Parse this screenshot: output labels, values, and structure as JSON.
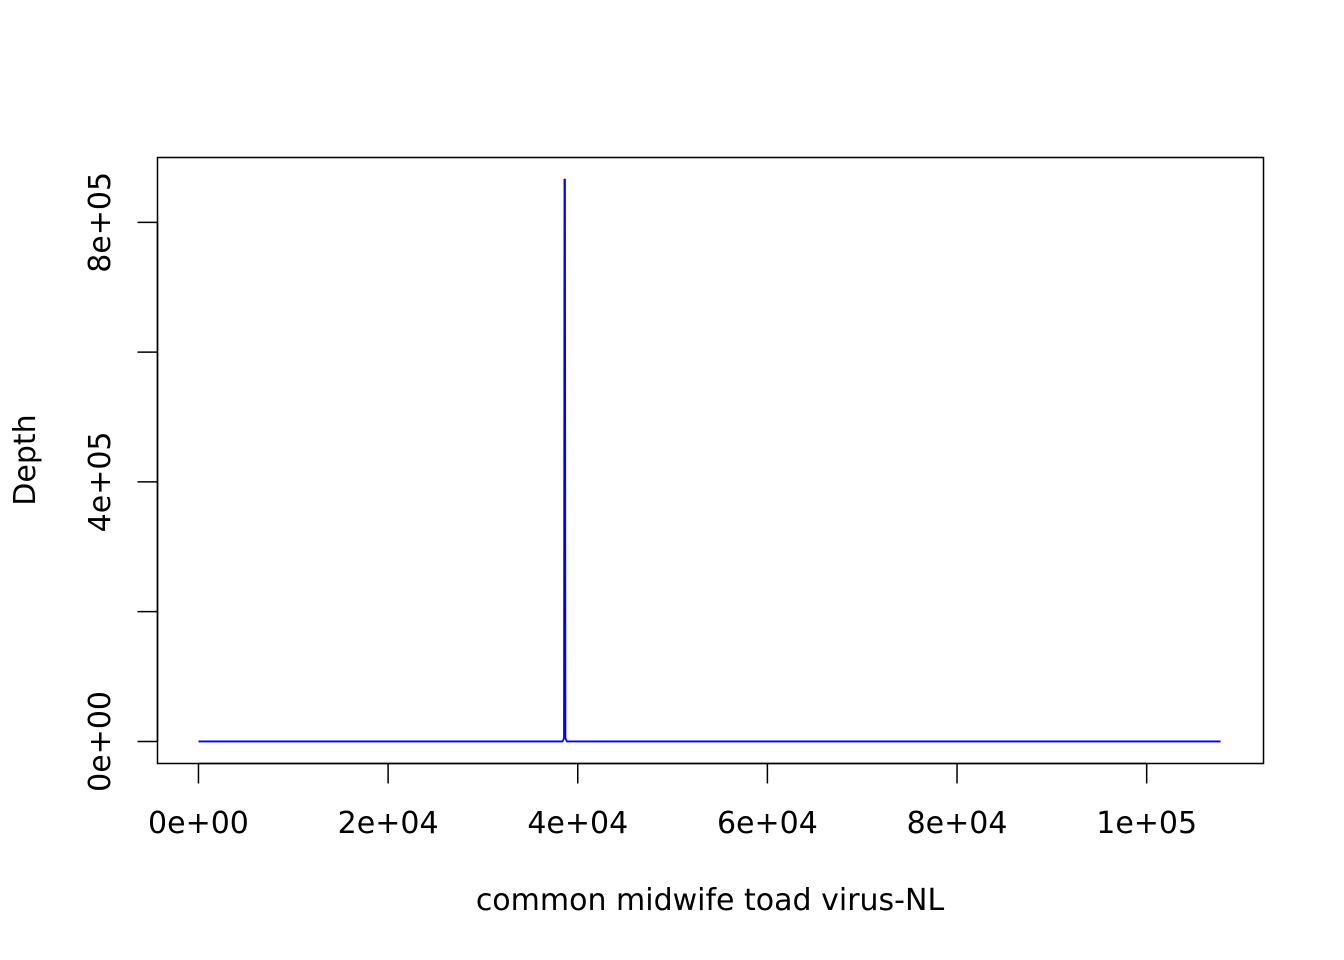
{
  "chart_data": {
    "type": "line",
    "title": "",
    "xlabel": "common midwife toad virus-NL",
    "ylabel": "Depth",
    "xlim": [
      -4320,
      112320
    ],
    "ylim": [
      -34000,
      900000
    ],
    "x_ticks": [
      0,
      20000,
      40000,
      60000,
      80000,
      100000
    ],
    "x_tick_labels": [
      "0e+00",
      "2e+04",
      "4e+04",
      "6e+04",
      "8e+04",
      "1e+05"
    ],
    "y_ticks": [
      0,
      200000,
      400000,
      600000,
      800000
    ],
    "y_tick_labels": [
      "0e+00",
      "",
      "4e+05",
      "",
      "8e+05"
    ],
    "grid": false,
    "legend": false,
    "series": [
      {
        "color": "#0000ff",
        "x": [
          0,
          38400,
          38550,
          38600,
          38650,
          38700,
          38850,
          107800
        ],
        "y": [
          0,
          0,
          5000,
          866000,
          866000,
          5000,
          0,
          0
        ]
      }
    ]
  }
}
